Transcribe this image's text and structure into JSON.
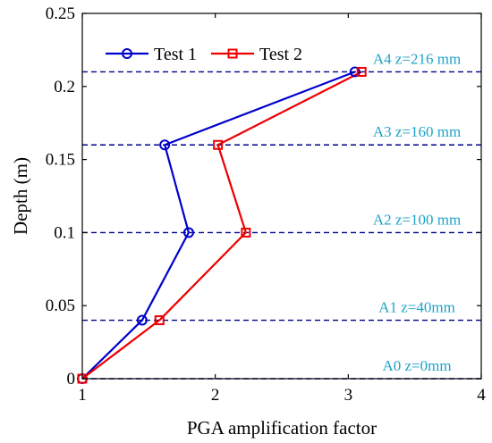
{
  "chart_data": {
    "type": "line",
    "xlabel": "PGA amplification factor",
    "ylabel": "Depth (m)",
    "xlim": [
      1,
      4
    ],
    "ylim": [
      0,
      0.25
    ],
    "x_ticks": [
      "1",
      "2",
      "3",
      "4"
    ],
    "y_ticks": [
      "0",
      "0.05",
      "0.1",
      "0.15",
      "0.2",
      "0.25"
    ],
    "grid": false,
    "legend_position": "top-left",
    "series": [
      {
        "name": "Test 1",
        "color": "#0000cc",
        "marker": "circle",
        "points": [
          {
            "x": 1.0,
            "y": 0.0
          },
          {
            "x": 1.45,
            "y": 0.04
          },
          {
            "x": 1.8,
            "y": 0.1
          },
          {
            "x": 1.62,
            "y": 0.16
          },
          {
            "x": 3.05,
            "y": 0.21
          }
        ]
      },
      {
        "name": "Test 2",
        "color": "#ee0000",
        "marker": "square",
        "points": [
          {
            "x": 1.0,
            "y": 0.0
          },
          {
            "x": 1.58,
            "y": 0.04
          },
          {
            "x": 2.23,
            "y": 0.1
          },
          {
            "x": 2.02,
            "y": 0.16
          },
          {
            "x": 3.1,
            "y": 0.21
          }
        ]
      }
    ],
    "reference_lines": [
      {
        "y": 0.21,
        "label": "A4 z=216 mm"
      },
      {
        "y": 0.16,
        "label": "A3 z=160 mm"
      },
      {
        "y": 0.1,
        "label": "A2 z=100 mm"
      },
      {
        "y": 0.04,
        "label": "A1 z=40mm"
      },
      {
        "y": 0.0,
        "label": "A0 z=0mm"
      }
    ],
    "reference_line_color": "#00008b",
    "reference_label_color": "#1fa3c9"
  }
}
